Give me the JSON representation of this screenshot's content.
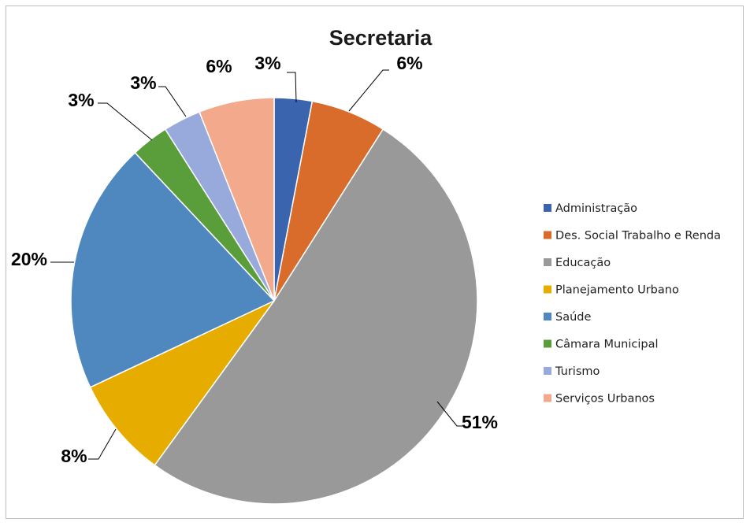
{
  "chart_data": {
    "type": "pie",
    "title": "Secretaria",
    "categories": [
      "Administração",
      "Des. Social Trabalho e Renda",
      "Educação",
      "Planejamento Urbano",
      "Saúde",
      "Câmara Municipal",
      "Turismo",
      "Serviços Urbanos"
    ],
    "values": [
      3,
      6,
      51,
      8,
      20,
      3,
      3,
      6
    ],
    "labels": [
      "3%",
      "6%",
      "51%",
      "8%",
      "20%",
      "3%",
      "3%",
      "6%"
    ],
    "colors": [
      "#3a64ad",
      "#d96b2b",
      "#999999",
      "#e6ad00",
      "#4f88bf",
      "#5a9e3c",
      "#98aadb",
      "#f2a98c"
    ],
    "legend": "right",
    "start_angle": "12 o'clock",
    "direction": "clockwise"
  }
}
